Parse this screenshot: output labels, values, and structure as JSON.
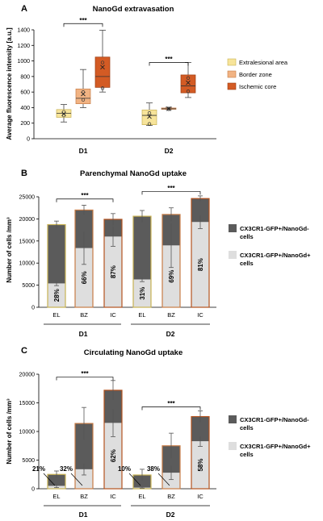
{
  "chart_data": [
    {
      "panel_label": "A",
      "type": "box",
      "title": "NanoGd extravasation",
      "ylabel": "Average fluorescence intensity [a.u.]",
      "ylim": [
        0,
        1400
      ],
      "yticks": [
        0,
        200,
        400,
        600,
        800,
        1000,
        1200,
        1400
      ],
      "groups": [
        "D1",
        "D2"
      ],
      "series": [
        {
          "name": "Extralesional area",
          "color": "#f7e49a",
          "edge": "#c8b253"
        },
        {
          "name": "Border zone",
          "color": "#f1b383",
          "edge": "#c77c46"
        },
        {
          "name": "Ischemic core",
          "color": "#d35b24",
          "edge": "#9a3a10"
        }
      ],
      "boxes": [
        {
          "group": "D1",
          "series": "Extralesional area",
          "min": 215,
          "q1": 275,
          "median": 325,
          "q3": 375,
          "max": 440,
          "mean": 320,
          "points": [
            300,
            345
          ]
        },
        {
          "group": "D1",
          "series": "Border zone",
          "min": 400,
          "q1": 450,
          "median": 520,
          "q3": 640,
          "max": 890,
          "mean": 575,
          "points": [
            500,
            600
          ]
        },
        {
          "group": "D1",
          "series": "Ischemic core",
          "min": 600,
          "q1": 660,
          "median": 800,
          "q3": 1050,
          "max": 1395,
          "mean": 920,
          "points": [
            650,
            980
          ]
        },
        {
          "group": "D2",
          "series": "Extralesional area",
          "min": 170,
          "q1": 180,
          "median": 300,
          "q3": 370,
          "max": 460,
          "mean": 285,
          "points": [
            190,
            330
          ]
        },
        {
          "group": "D2",
          "series": "Border zone",
          "min": 375,
          "q1": 378,
          "median": 385,
          "q3": 395,
          "max": 405,
          "mean": 385,
          "points": [
            380
          ]
        },
        {
          "group": "D2",
          "series": "Ischemic core",
          "min": 530,
          "q1": 590,
          "median": 680,
          "q3": 820,
          "max": 980,
          "mean": 720,
          "points": [
            610,
            780
          ]
        }
      ],
      "significance": [
        {
          "group": "D1",
          "label": "***"
        },
        {
          "group": "D2",
          "label": "***"
        }
      ]
    },
    {
      "panel_label": "B",
      "type": "bar",
      "stacked": true,
      "title": "Parenchymal NanoGd uptake",
      "ylabel": "Number of cells /mm³",
      "ylim": [
        0,
        25000
      ],
      "yticks": [
        0,
        5000,
        10000,
        15000,
        20000,
        25000
      ],
      "categories": [
        "EL",
        "BZ",
        "IC",
        "EL",
        "BZ",
        "IC"
      ],
      "groups": [
        "D1",
        "D2"
      ],
      "series": [
        {
          "name": "CX3CR1-GFP+/NanoGd- cells",
          "name_lines": [
            "CX3CR1-GFP+/NanoGd-",
            "cells"
          ],
          "color": "#5b5b5b",
          "values": [
            13300,
            8600,
            3900,
            14300,
            7000,
            5300
          ]
        },
        {
          "name": "CX3CR1-GFP+/NanoGd+ cells",
          "name_lines": [
            "CX3CR1-GFP+/NanoGd+",
            "cells"
          ],
          "color": "#dedede",
          "values": [
            5400,
            13400,
            16000,
            6300,
            14000,
            19300
          ]
        }
      ],
      "totals": [
        18700,
        22000,
        19900,
        20600,
        21000,
        24600
      ],
      "total_err": [
        800,
        1100,
        1300,
        1300,
        1500,
        600
      ],
      "lower_err": [
        500,
        3700,
        2200,
        500,
        5000,
        1500
      ],
      "percent_labels": [
        "28%",
        "66%",
        "87%",
        "31%",
        "69%",
        "81%"
      ],
      "edge_colors": [
        "#c8b253",
        "#c77c46",
        "#b5531f",
        "#c8b253",
        "#c77c46",
        "#b5531f"
      ],
      "significance": [
        {
          "from": 0,
          "to": 2,
          "label": "***"
        },
        {
          "from": 3,
          "to": 5,
          "label": "***"
        }
      ]
    },
    {
      "panel_label": "C",
      "type": "bar",
      "stacked": true,
      "title": "Circulating NanoGd uptake",
      "ylabel": "Number of cells /mm³",
      "ylim": [
        0,
        20000
      ],
      "yticks": [
        0,
        5000,
        10000,
        15000,
        20000
      ],
      "categories": [
        "EL",
        "BZ",
        "IC",
        "EL",
        "BZ",
        "IC"
      ],
      "groups": [
        "D1",
        "D2"
      ],
      "series": [
        {
          "name": "CX3CR1-GFP+/NanoGd- cells",
          "name_lines": [
            "CX3CR1-GFP+/NanoGd-",
            "cells"
          ],
          "color": "#5b5b5b",
          "values": [
            2000,
            8000,
            5700,
            2200,
            4700,
            4300
          ]
        },
        {
          "name": "CX3CR1-GFP+/NanoGd+ cells",
          "name_lines": [
            "CX3CR1-GFP+/NanoGd+",
            "cells"
          ],
          "color": "#dedede",
          "values": [
            500,
            3400,
            11500,
            200,
            2800,
            8300
          ]
        }
      ],
      "totals": [
        2500,
        11400,
        17200,
        2400,
        7500,
        12600
      ],
      "total_err": [
        600,
        2800,
        1700,
        1000,
        2200,
        1000
      ],
      "lower_err": [
        300,
        1000,
        2400,
        100,
        1200,
        900
      ],
      "percent_labels": [
        "21%",
        "32%",
        "62%",
        "10%",
        "38%",
        "58%"
      ],
      "edge_colors": [
        "#c8b253",
        "#c77c46",
        "#b5531f",
        "#c8b253",
        "#c77c46",
        "#b5531f"
      ],
      "significance": [
        {
          "from": 0,
          "to": 2,
          "label": "***"
        },
        {
          "from": 3,
          "to": 5,
          "label": "***"
        }
      ]
    }
  ]
}
